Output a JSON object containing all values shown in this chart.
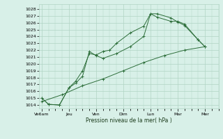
{
  "title": "Pression niveau de la mer( hPa )",
  "background_color": "#d8f0e8",
  "grid_color": "#b0d4c4",
  "line_color": "#2d6e3a",
  "ylim": [
    1013.5,
    1028.7
  ],
  "yticks": [
    1014,
    1015,
    1016,
    1017,
    1018,
    1019,
    1020,
    1021,
    1022,
    1023,
    1024,
    1025,
    1026,
    1027,
    1028
  ],
  "x_labels": [
    "Ve6am",
    "Jeu",
    "Ven",
    "Dim",
    "Lun",
    "Mar",
    "Mer"
  ],
  "x_positions": [
    0,
    2,
    4,
    6,
    8,
    10,
    12
  ],
  "xlim": [
    -0.2,
    13.0
  ],
  "line1": {
    "x": [
      0,
      0.5,
      1.3,
      2.0,
      2.5,
      3.0,
      3.5,
      4.0,
      4.5,
      5.0,
      5.5,
      6.5,
      7.5,
      8.0,
      8.5,
      9.5,
      10.0,
      10.5,
      11.5,
      12.0
    ],
    "y": [
      1015.0,
      1014.1,
      1014.0,
      1016.5,
      1017.5,
      1019.0,
      1021.5,
      1021.3,
      1021.8,
      1022.0,
      1023.0,
      1024.5,
      1025.5,
      1027.3,
      1027.3,
      1026.7,
      1026.1,
      1025.6,
      1023.5,
      1022.5
    ]
  },
  "line2": {
    "x": [
      0,
      0.5,
      1.3,
      2.0,
      2.5,
      3.0,
      3.5,
      4.0,
      4.5,
      5.5,
      6.5,
      7.5,
      8.0,
      8.5,
      9.5,
      10.0,
      10.5,
      11.5,
      12.0
    ],
    "y": [
      1015.0,
      1014.1,
      1014.0,
      1016.5,
      1017.2,
      1018.2,
      1021.8,
      1021.2,
      1020.8,
      1021.5,
      1022.5,
      1024.0,
      1027.3,
      1026.8,
      1026.2,
      1026.2,
      1025.8,
      1023.5,
      1022.5
    ]
  },
  "line3": {
    "x": [
      0,
      1.5,
      3.0,
      4.5,
      6.0,
      7.5,
      9.0,
      10.5,
      12.0
    ],
    "y": [
      1014.5,
      1015.5,
      1016.8,
      1017.8,
      1019.0,
      1020.2,
      1021.2,
      1022.0,
      1022.5
    ]
  }
}
